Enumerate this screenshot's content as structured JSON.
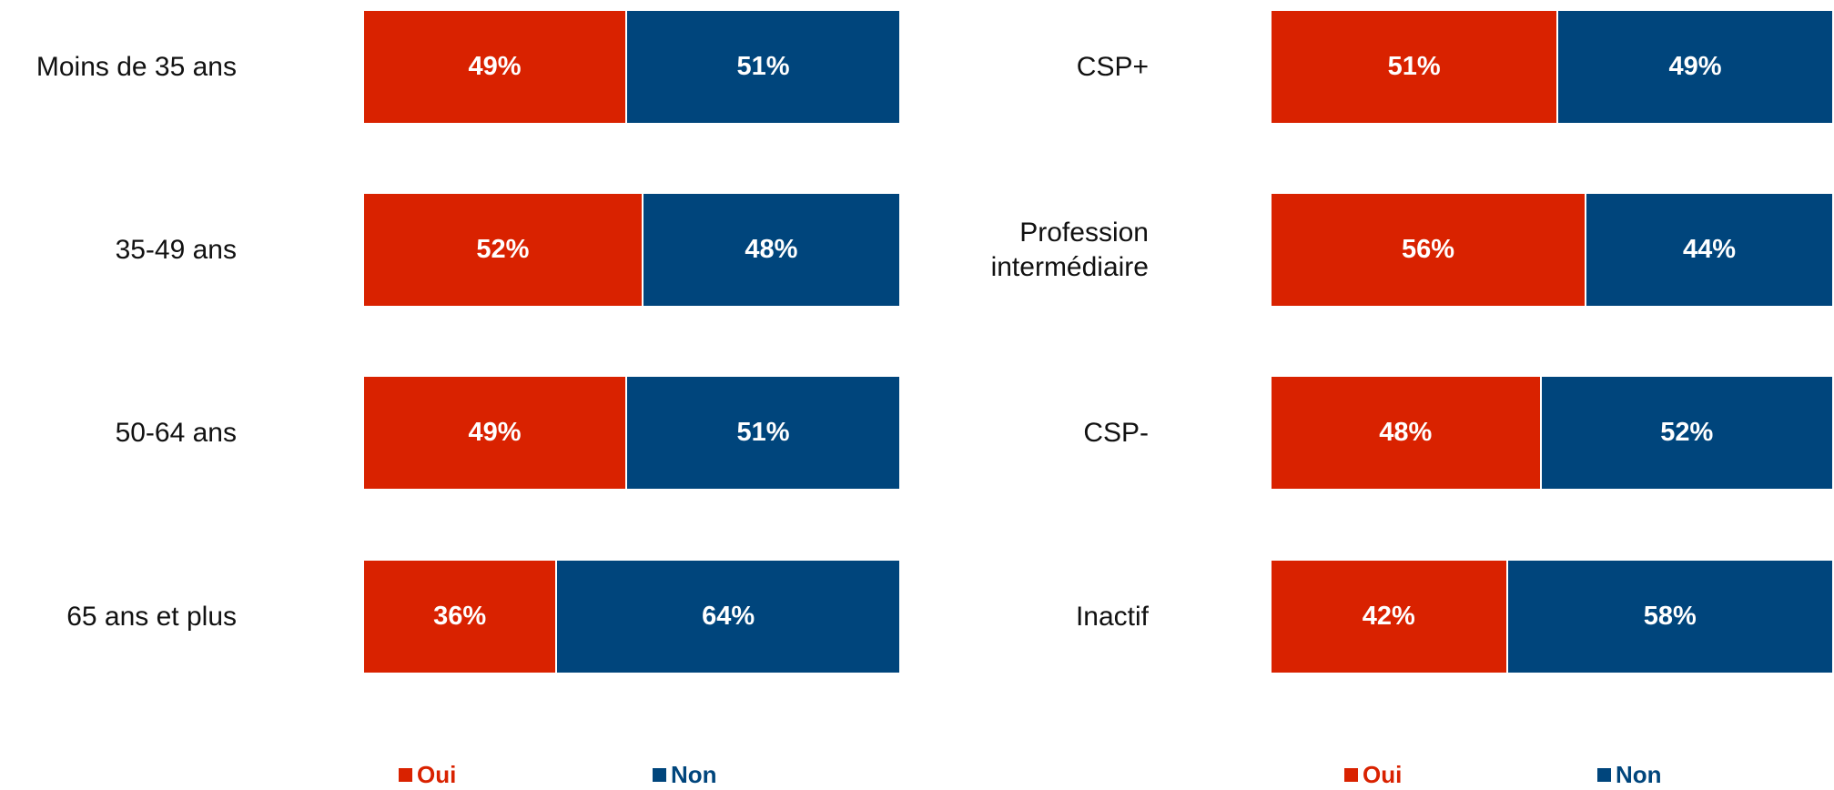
{
  "chart_data": [
    {
      "type": "stacked_bar_horizontal",
      "categories": [
        "Moins de 35 ans",
        "35-49 ans",
        "50-64 ans",
        "65 ans et plus"
      ],
      "xlim": [
        0,
        100
      ],
      "legend": "bottom",
      "series": [
        {
          "name": "Oui",
          "color": "#d92200",
          "values": [
            49,
            52,
            49,
            36
          ],
          "value_labels": [
            "49%",
            "52%",
            "49%",
            "36%"
          ]
        },
        {
          "name": "Non",
          "color": "#00457c",
          "values": [
            51,
            48,
            51,
            64
          ],
          "value_labels": [
            "51%",
            "48%",
            "51%",
            "64%"
          ]
        }
      ]
    },
    {
      "type": "stacked_bar_horizontal",
      "categories": [
        "CSP+",
        "Profession intermédiaire",
        "CSP-",
        "Inactif"
      ],
      "xlim": [
        0,
        100
      ],
      "legend": "bottom",
      "series": [
        {
          "name": "Oui",
          "color": "#d92200",
          "values": [
            51,
            56,
            48,
            42
          ],
          "value_labels": [
            "51%",
            "56%",
            "48%",
            "42%"
          ]
        },
        {
          "name": "Non",
          "color": "#00457c",
          "values": [
            49,
            44,
            52,
            58
          ],
          "value_labels": [
            "49%",
            "44%",
            "52%",
            "58%"
          ]
        }
      ]
    }
  ]
}
